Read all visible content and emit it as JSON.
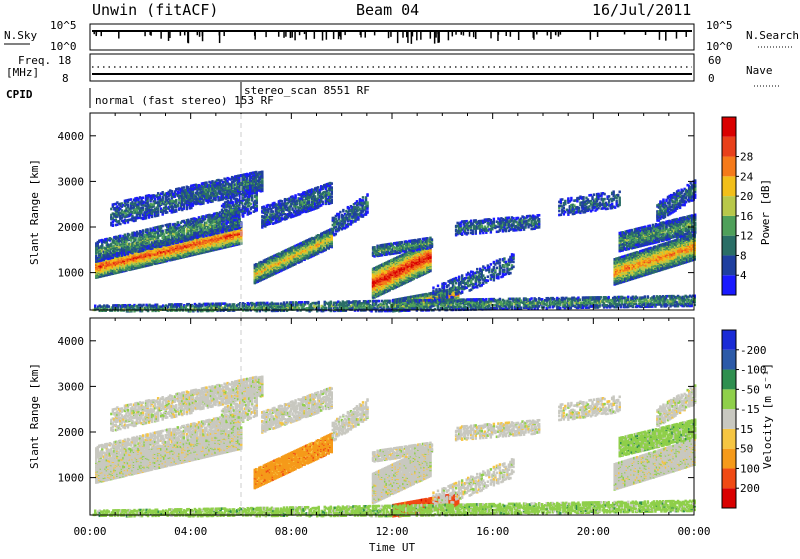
{
  "header": {
    "station": "Unwin (fitACF)",
    "beam": "Beam 04",
    "date": "16/Jul/2011"
  },
  "noise": {
    "left_label": "N.Sky",
    "right_label": "N.Search",
    "ticks_left": [
      "10^5",
      "10^0"
    ],
    "ticks_right": [
      "10^5",
      "10^0"
    ]
  },
  "freq": {
    "left_label_1": "Freq.",
    "left_label_2": "[MHz]",
    "ticks_left": [
      "18",
      "8"
    ],
    "ticks_right": [
      "60",
      "0"
    ],
    "right_label": "Nave"
  },
  "cpid": {
    "label": "CPID",
    "modes": [
      {
        "text": "normal (fast stereo) 153 RF",
        "start_hour": 0
      },
      {
        "text": "stereo_scan 8551 RF",
        "start_hour": 6
      }
    ]
  },
  "colors": {
    "power": [
      "#1a1aff",
      "#1f3f9f",
      "#2a6e66",
      "#4fa05a",
      "#b8c84a",
      "#f2bf1a",
      "#f57a1a",
      "#e8401a",
      "#d90000"
    ],
    "velocity": [
      "#d90000",
      "#f04a14",
      "#f59a1a",
      "#f5c542",
      "#c8c8c0",
      "#8fcf4a",
      "#2f8f4f",
      "#2c5aa8",
      "#1a2bd6"
    ]
  },
  "chart_data": [
    {
      "type": "heatmap",
      "title": "Power",
      "xlabel": "Time UT",
      "ylabel": "Slant Range [km]",
      "x_ticks": [
        "00:00",
        "04:00",
        "08:00",
        "12:00",
        "16:00",
        "20:00",
        "00:00"
      ],
      "xlim_hours": [
        0,
        24
      ],
      "y_ticks": [
        1000,
        2000,
        3000,
        4000
      ],
      "ylim_km": [
        180,
        4500
      ],
      "colorbar_label": "Power [dB]",
      "colorbar_ticks": [
        4,
        8,
        12,
        16,
        20,
        24,
        28
      ],
      "colorbar_range": [
        0,
        30
      ]
    },
    {
      "type": "heatmap",
      "title": "Velocity",
      "xlabel": "Time UT",
      "ylabel": "Slant Range [km]",
      "x_ticks": [
        "00:00",
        "04:00",
        "08:00",
        "12:00",
        "16:00",
        "20:00",
        "00:00"
      ],
      "xlim_hours": [
        0,
        24
      ],
      "y_ticks": [
        1000,
        2000,
        3000,
        4000
      ],
      "ylim_km": [
        180,
        4500
      ],
      "colorbar_label": "Velocity [m s⁻¹]",
      "colorbar_ticks": [
        -200,
        -100,
        -50,
        -15,
        15,
        50,
        100,
        200
      ],
      "colorbar_range": [
        -250,
        250
      ]
    }
  ],
  "x_axis_title": "Time UT"
}
